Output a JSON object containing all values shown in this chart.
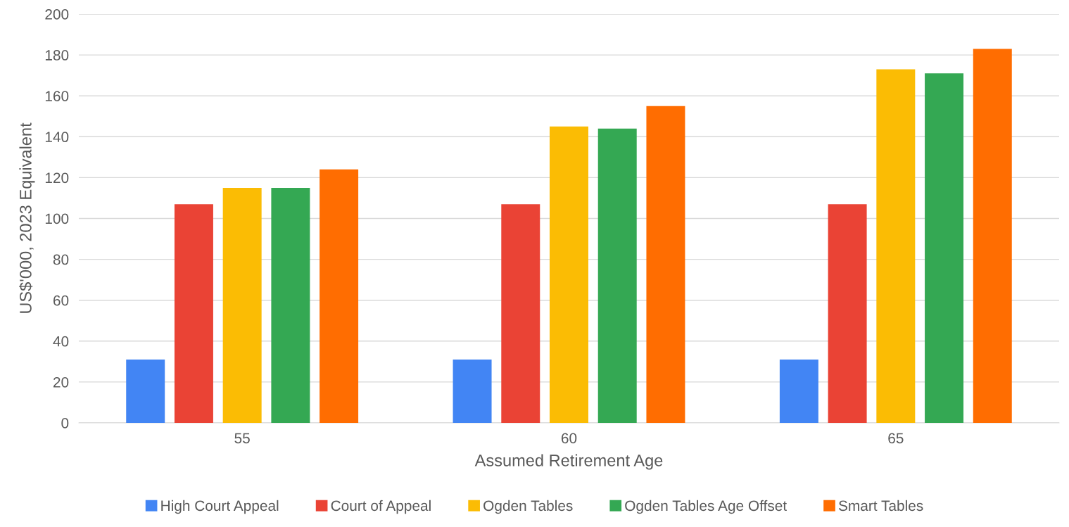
{
  "chart_data": {
    "type": "bar",
    "xlabel": "Assumed Retirement Age",
    "ylabel": "US$'000, 2023 Equivalent",
    "categories": [
      "55",
      "60",
      "65"
    ],
    "series": [
      {
        "name": "High Court Appeal",
        "color": "#4285f4",
        "values": [
          31,
          31,
          31
        ]
      },
      {
        "name": "Court of Appeal",
        "color": "#ea4335",
        "values": [
          107,
          107,
          107
        ]
      },
      {
        "name": "Ogden Tables",
        "color": "#fbbc04",
        "values": [
          115,
          145,
          173
        ]
      },
      {
        "name": "Ogden Tables Age Offset",
        "color": "#34a853",
        "values": [
          115,
          144,
          171
        ]
      },
      {
        "name": "Smart Tables",
        "color": "#ff6d01",
        "values": [
          124,
          155,
          183
        ]
      }
    ],
    "ylim": [
      0,
      200
    ],
    "yticks": [
      0,
      20,
      40,
      60,
      80,
      100,
      120,
      140,
      160,
      180,
      200
    ],
    "grid": "y",
    "legend": "bottom"
  }
}
